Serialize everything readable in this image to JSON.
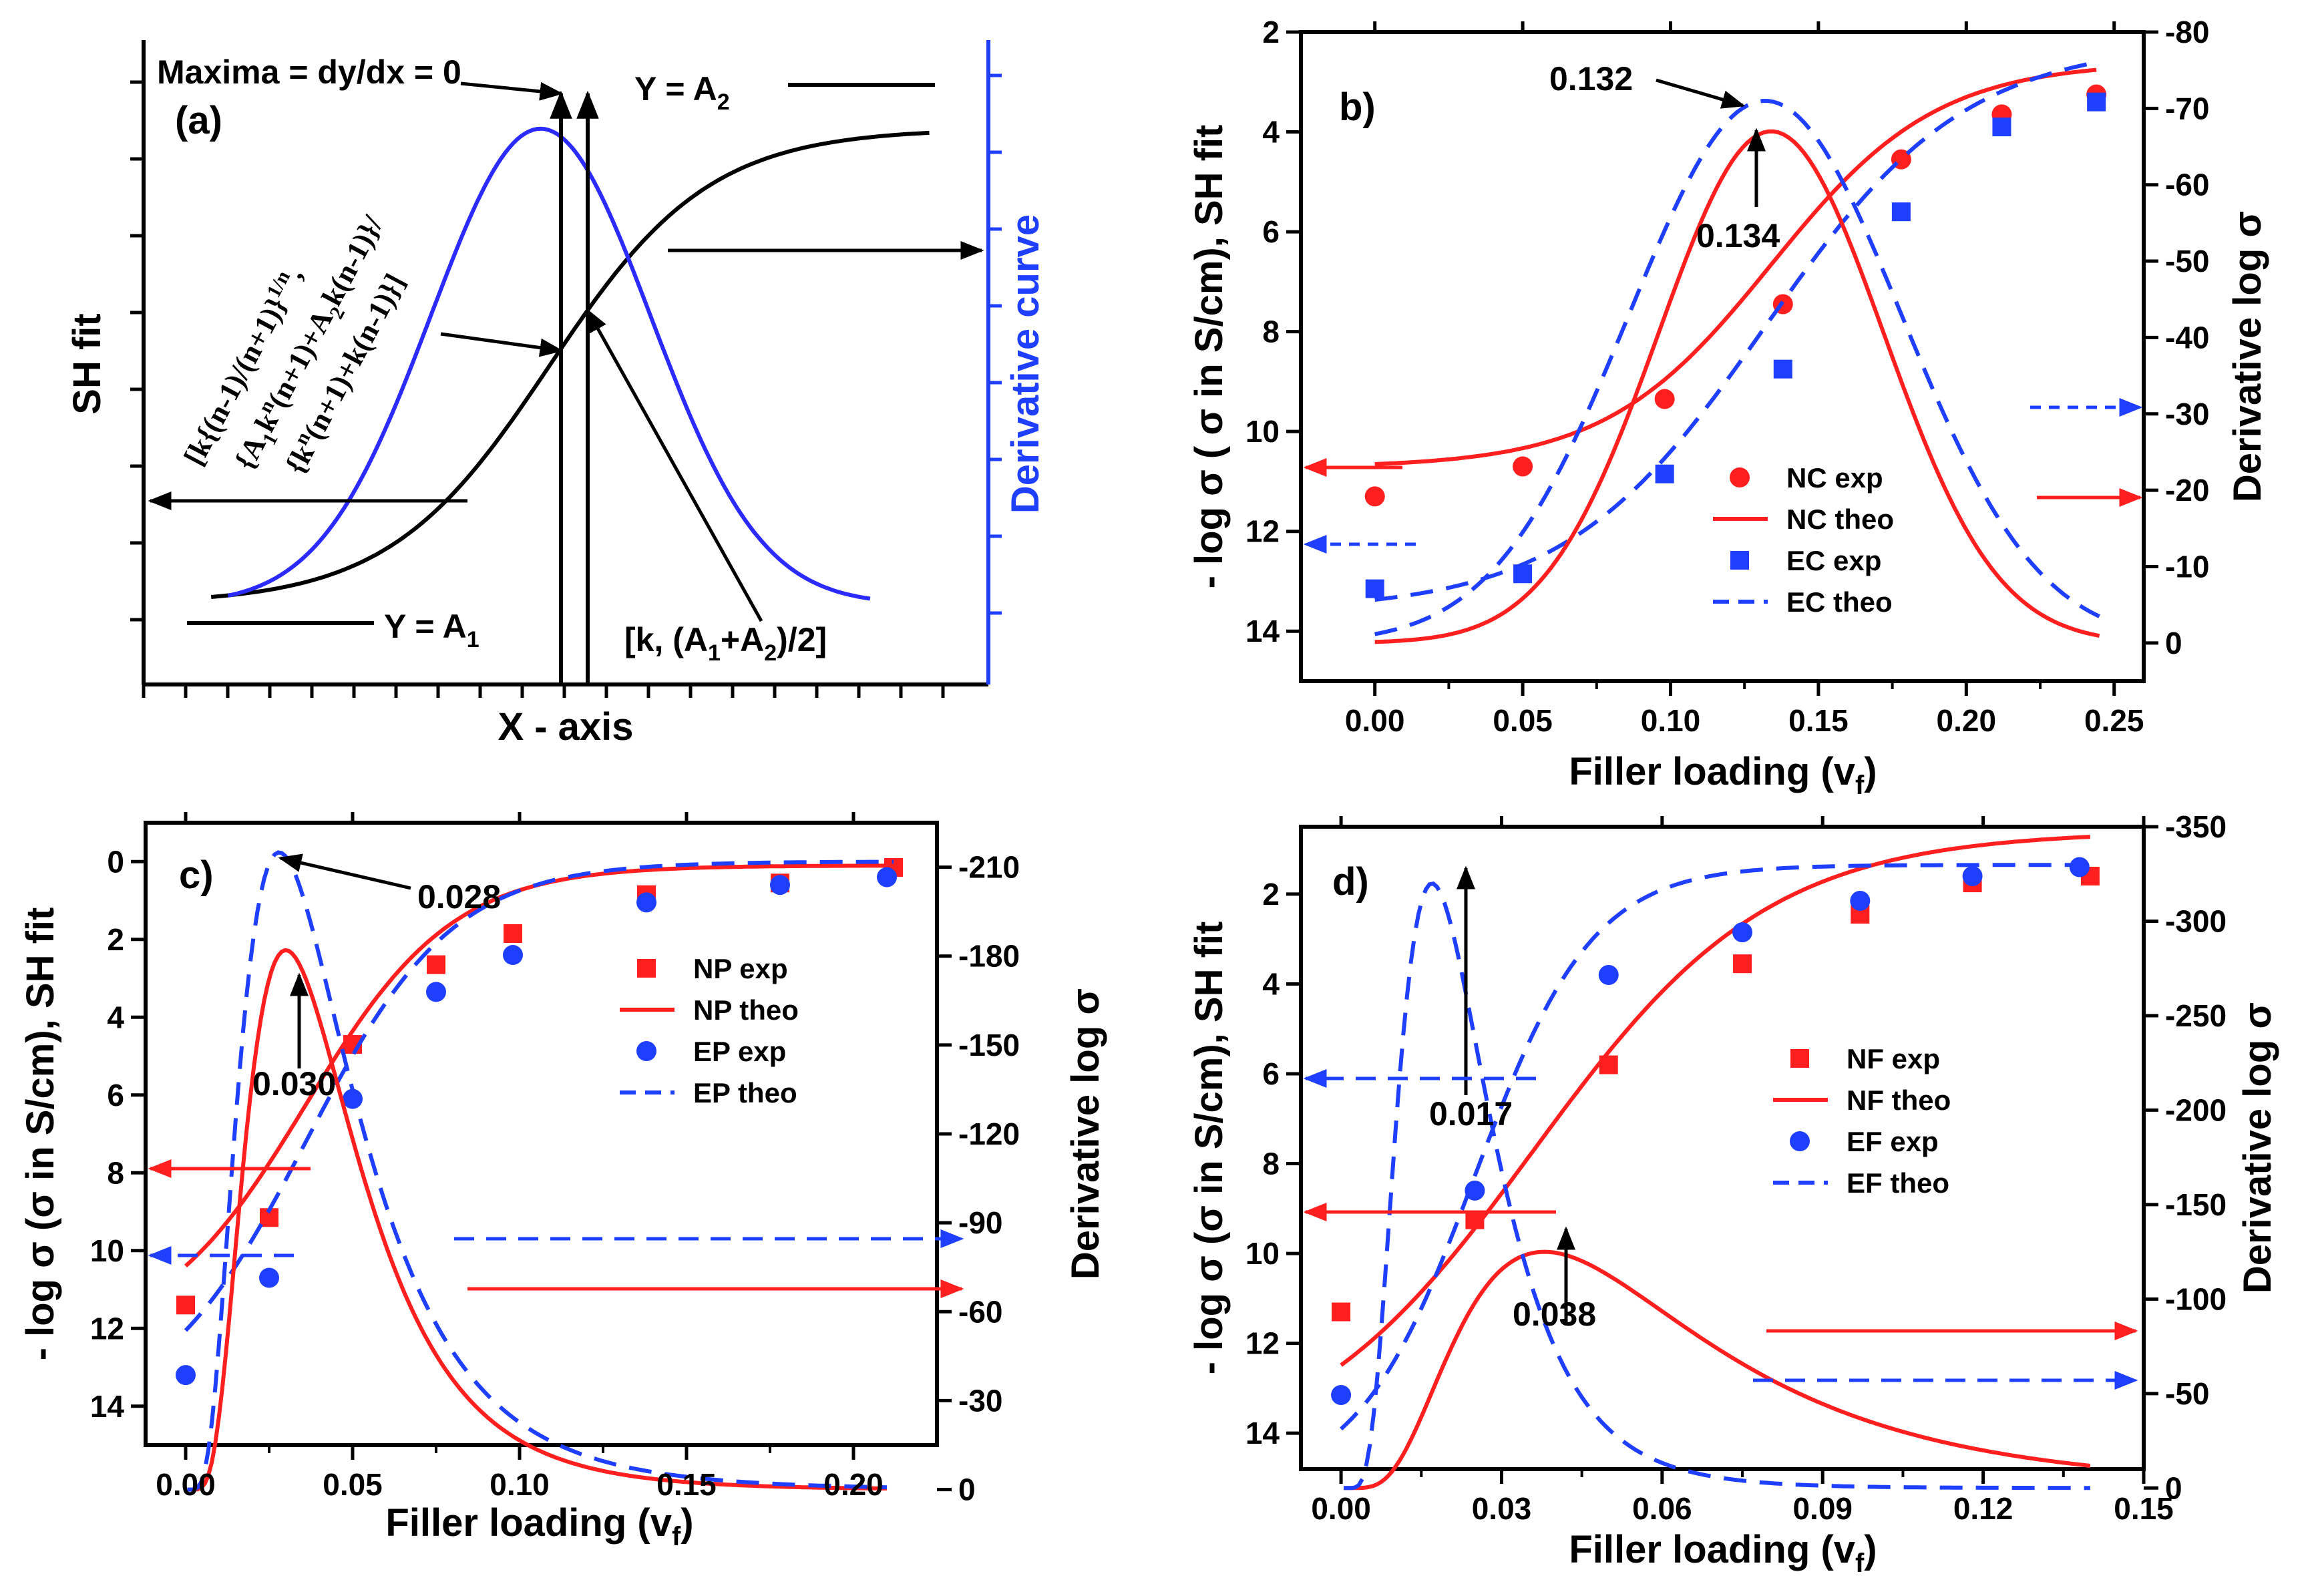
{
  "colors": {
    "red": "#ff1f1f",
    "blue": "#1f3fff",
    "curve_blue": "#2b2bff",
    "black": "#000000"
  },
  "chart_data": [
    {
      "id": "a",
      "type": "line",
      "panel_label": "(a)",
      "xlabel": "X - axis",
      "ylabel": "SH fit",
      "y2label": "Derivative curve",
      "x": [
        0,
        10
      ],
      "sigmoid": {
        "A1": 1,
        "A2": 6.9,
        "k": 4.8,
        "width": 0.95
      },
      "derivative": {
        "center": 4.7,
        "sigma": 1.3,
        "min": 1.0,
        "max": 6.9
      },
      "annotations": {
        "maxima": "Maxima = dy/dx = 0",
        "y_a2_left": "Y = A",
        "y_a2_sub": "2",
        "y_a1_left": "Y = A",
        "y_a1_sub": "1",
        "point_left": "[k, (A",
        "point_sub1": "1",
        "point_mid": "+A",
        "point_sub2": "2",
        "point_right": ")/2]",
        "eq_line1": "[k{(n-1)/(n+1)}",
        "eq_line1_sup": "1/n",
        "eq_line2": "{A",
        "eq_line2_rest": "k",
        "eq_line2_tail": "(n+1)+A",
        "eq_line2_end": "k(n-1)}/",
        "eq_line3": "{k",
        "eq_line3_tail": "(n+1)+k(n-1)}]"
      }
    },
    {
      "id": "b",
      "type": "line",
      "panel_label": "b)",
      "xlabel": "Filler loading (v",
      "xlabel_sub": "f",
      "xlabel_end": ")",
      "ylabel": "- log σ ( σ in S/cm), SH fit",
      "y2label": "Derivative log σ",
      "xlim": [
        -0.025,
        0.26
      ],
      "ylim": [
        15,
        2
      ],
      "y2lim": [
        5,
        -80
      ],
      "xticks": [
        "0.00",
        "0.05",
        "0.10",
        "0.15",
        "0.20",
        "0.25"
      ],
      "yticks": [
        "2",
        "4",
        "6",
        "8",
        "10",
        "12",
        "14"
      ],
      "y2ticks": [
        "-80",
        "-70",
        "-60",
        "-50",
        "-40",
        "-30",
        "-20",
        "-10",
        "0"
      ],
      "series": [
        {
          "name": "NC exp",
          "kind": "circle",
          "color": "red",
          "x": [
            0.0,
            0.05,
            0.098,
            0.138,
            0.178,
            0.212,
            0.244
          ],
          "y": [
            11.3,
            10.7,
            9.35,
            7.45,
            4.55,
            3.65,
            3.25
          ]
        },
        {
          "name": "NC theo",
          "kind": "solid",
          "color": "red",
          "axis": "left",
          "model": {
            "A1": 10.72,
            "A2": 2.6,
            "k": 0.134,
            "w": 0.028
          }
        },
        {
          "name": "EC exp",
          "kind": "square",
          "color": "blue",
          "x": [
            0.0,
            0.05,
            0.098,
            0.138,
            0.178,
            0.212,
            0.244
          ],
          "y": [
            13.15,
            12.85,
            10.85,
            8.75,
            5.6,
            3.9,
            3.4
          ]
        },
        {
          "name": "EC theo",
          "kind": "dash",
          "color": "blue",
          "axis": "left",
          "model": {
            "A1": 13.6,
            "A2": 2.2,
            "k": 0.132,
            "w": 0.034
          }
        },
        {
          "name": "NC deriv",
          "kind": "solid",
          "color": "red",
          "axis": "right",
          "gauss": {
            "peak": -67,
            "center": 0.134,
            "sigma": 0.038,
            "x0": 0.0,
            "x1": 0.245
          }
        },
        {
          "name": "EC deriv",
          "kind": "dash",
          "color": "blue",
          "axis": "right",
          "gauss": {
            "peak": -71,
            "center": 0.132,
            "sigma": 0.046,
            "x0": 0.0,
            "x1": 0.245
          }
        }
      ],
      "annotations": {
        "peak1": "0.132",
        "peak2": "0.134"
      }
    },
    {
      "id": "c",
      "type": "line",
      "panel_label": "c)",
      "xlabel": "Filler loading (v",
      "xlabel_sub": "f",
      "xlabel_end": ")",
      "ylabel": "- log σ (σ in S/cm), SH fit",
      "y2label": "Derivative log σ",
      "xlim": [
        -0.012,
        0.225
      ],
      "ylim": [
        15,
        -1
      ],
      "y2lim": [
        -15,
        -225
      ],
      "xticks": [
        "0.00",
        "0.05",
        "0.10",
        "0.15",
        "0.20"
      ],
      "yticks": [
        "0",
        "2",
        "4",
        "6",
        "8",
        "10",
        "12",
        "14"
      ],
      "y2ticks": [
        "-210",
        "-180",
        "-150",
        "-120",
        "-90",
        "-60",
        "-30",
        "0"
      ],
      "series": [
        {
          "name": "NP exp",
          "kind": "square",
          "color": "red",
          "x": [
            0.0,
            0.025,
            0.05,
            0.075,
            0.098,
            0.138,
            0.178,
            0.212
          ],
          "y": [
            11.4,
            9.15,
            4.7,
            2.65,
            1.85,
            0.85,
            0.55,
            0.15
          ]
        },
        {
          "name": "NP theo",
          "kind": "solid",
          "color": "red",
          "axis": "left",
          "model": {
            "A1": 12.4,
            "A2": 0.1,
            "k": 0.036,
            "w": 0.022
          }
        },
        {
          "name": "EP exp",
          "kind": "circle",
          "color": "blue",
          "x": [
            0.0,
            0.025,
            0.05,
            0.075,
            0.098,
            0.138,
            0.178,
            0.21
          ],
          "y": [
            13.2,
            10.7,
            6.1,
            3.35,
            2.4,
            1.05,
            0.6,
            0.4
          ]
        },
        {
          "name": "EP theo",
          "kind": "dash",
          "color": "blue",
          "axis": "left",
          "model": {
            "A1": 14.4,
            "A2": 0.0,
            "k": 0.036,
            "w": 0.022
          }
        },
        {
          "name": "NP deriv",
          "kind": "solid",
          "color": "red",
          "axis": "right",
          "logn": {
            "peak": -182,
            "center": 0.03,
            "s": 0.55,
            "x0": 0.0,
            "x1": 0.21
          }
        },
        {
          "name": "EP deriv",
          "kind": "dash",
          "color": "blue",
          "axis": "right",
          "logn": {
            "peak": -215,
            "center": 0.028,
            "s": 0.6,
            "x0": 0.0,
            "x1": 0.21
          }
        }
      ],
      "annotations": {
        "peak1": "0.028",
        "peak2": "0.030"
      }
    },
    {
      "id": "d",
      "type": "line",
      "panel_label": "d)",
      "xlabel": "Filler loading (v",
      "xlabel_sub": "f",
      "xlabel_end": ")",
      "ylabel": "- log σ (σ in S/cm), SH fit",
      "y2label": "Derivative log σ",
      "xlim": [
        -0.0075,
        0.15
      ],
      "ylim": [
        14.8,
        0.5
      ],
      "y2lim": [
        -10,
        -350
      ],
      "xticks": [
        "0.00",
        "0.03",
        "0.06",
        "0.09",
        "0.12",
        "0.15"
      ],
      "yticks": [
        "2",
        "4",
        "6",
        "8",
        "10",
        "12",
        "14"
      ],
      "y2ticks": [
        "-350",
        "-300",
        "-250",
        "-200",
        "-150",
        "-100",
        "-50",
        "0"
      ],
      "series": [
        {
          "name": "NF exp",
          "kind": "square",
          "color": "red",
          "x": [
            0.0,
            0.025,
            0.05,
            0.075,
            0.097,
            0.118,
            0.14
          ],
          "y": [
            11.3,
            9.25,
            5.8,
            3.55,
            2.45,
            1.75,
            1.6
          ]
        },
        {
          "name": "NF theo",
          "kind": "solid",
          "color": "red",
          "axis": "left",
          "model": {
            "A1": 14.8,
            "A2": 0.6,
            "k": 0.036,
            "w": 0.022
          }
        },
        {
          "name": "EF exp",
          "kind": "circle",
          "color": "blue",
          "x": [
            0.0,
            0.025,
            0.05,
            0.075,
            0.097,
            0.118,
            0.138
          ],
          "y": [
            13.15,
            8.6,
            3.8,
            2.85,
            2.15,
            1.6,
            1.4
          ]
        },
        {
          "name": "EF theo",
          "kind": "dash",
          "color": "blue",
          "axis": "left",
          "model": {
            "A1": 15.2,
            "A2": 1.35,
            "k": 0.025,
            "w": 0.011
          }
        },
        {
          "name": "NF deriv",
          "kind": "solid",
          "color": "red",
          "axis": "right",
          "logn": {
            "peak": -125,
            "center": 0.038,
            "s": 0.6,
            "x0": 0.0,
            "x1": 0.14
          }
        },
        {
          "name": "EF deriv",
          "kind": "dash",
          "color": "blue",
          "axis": "right",
          "logn": {
            "peak": -320,
            "center": 0.017,
            "s": 0.5,
            "x0": 0.0,
            "x1": 0.14
          }
        }
      ],
      "annotations": {
        "peak1": "0.017",
        "peak2": "0.038"
      }
    }
  ]
}
